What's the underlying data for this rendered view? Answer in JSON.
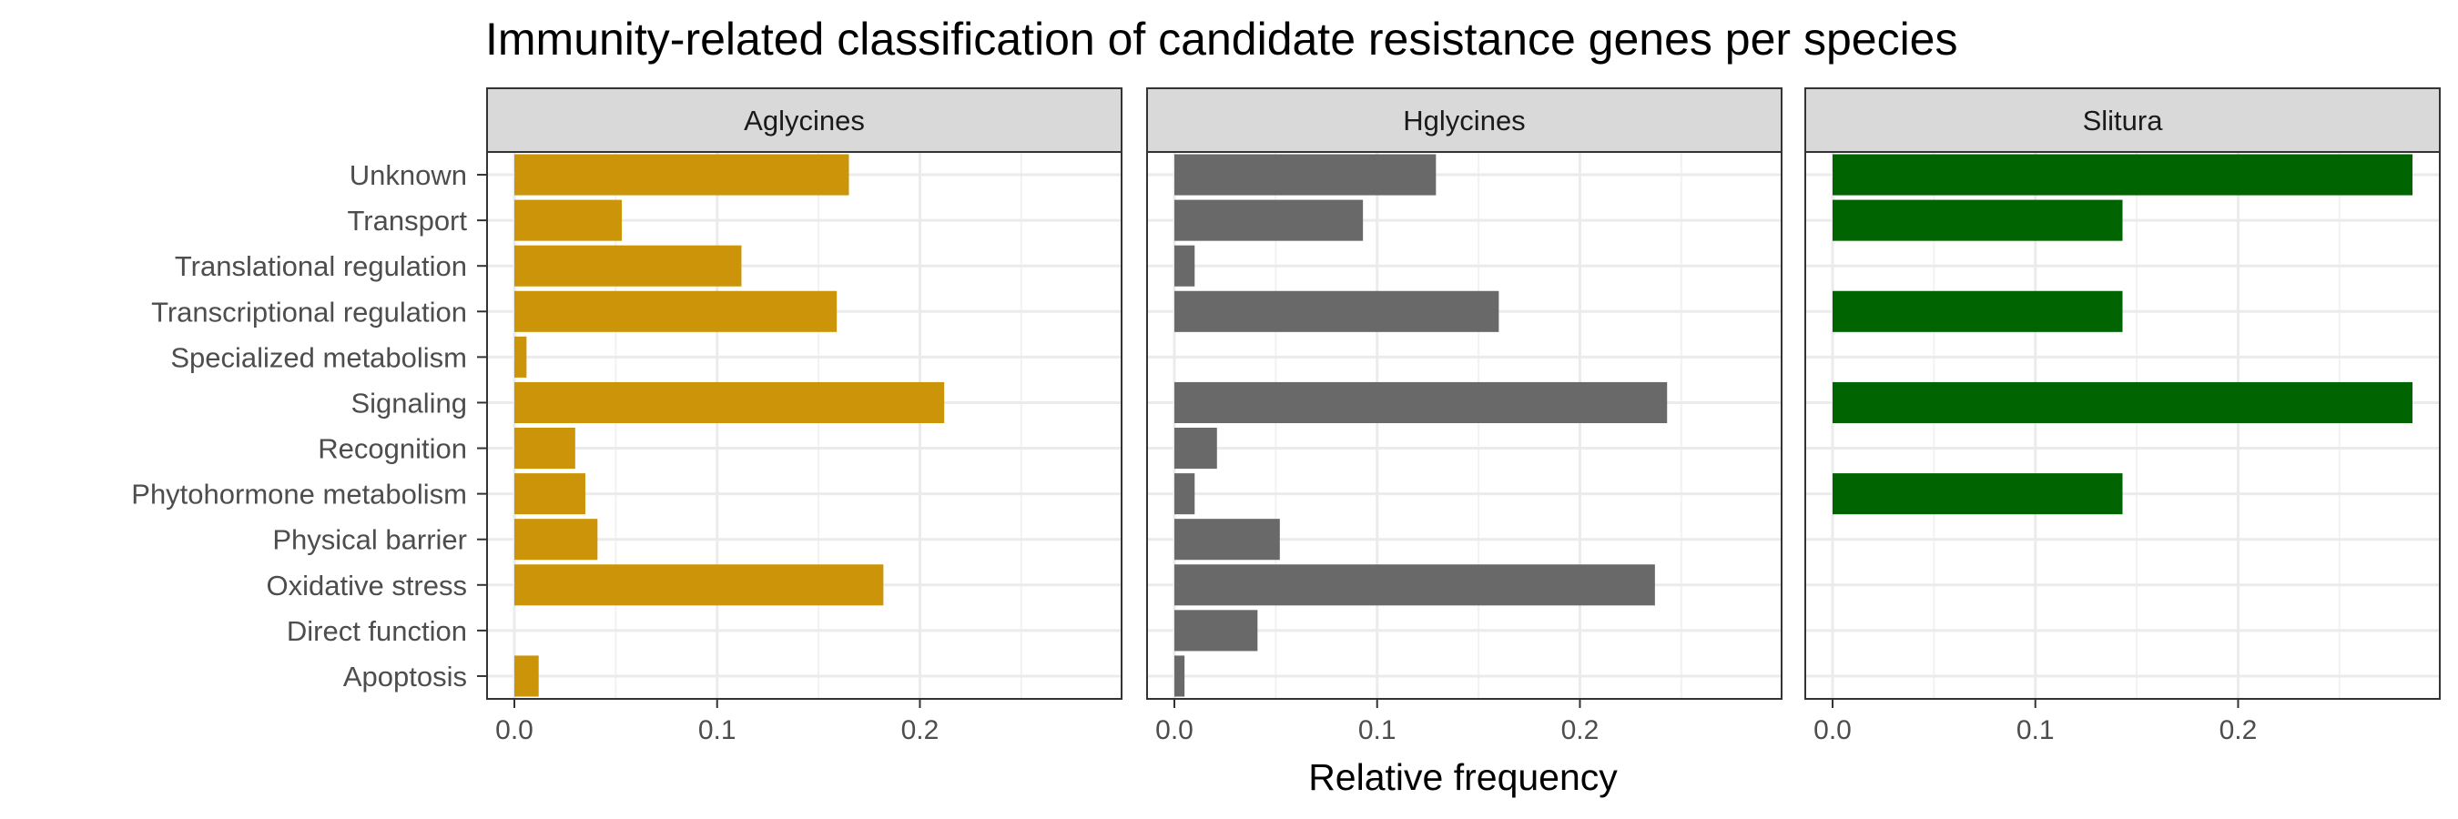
{
  "chart_data": {
    "type": "bar",
    "orientation": "horizontal",
    "title": "Immunity-related classification of candidate resistance genes per species",
    "xlabel": "Relative frequency",
    "ylabel": "",
    "xlim": [
      0,
      0.286
    ],
    "x_ticks": [
      0.0,
      0.1,
      0.2
    ],
    "x_tick_labels": [
      "0.0",
      "0.1",
      "0.2"
    ],
    "grid": true,
    "categories": [
      "Unknown",
      "Transport",
      "Translational regulation",
      "Transcriptional regulation",
      "Specialized metabolism",
      "Signaling",
      "Recognition",
      "Phytohormone metabolism",
      "Physical barrier",
      "Oxidative stress",
      "Direct function",
      "Apoptosis"
    ],
    "series": [
      {
        "name": "Aglycines",
        "color": "#CC9409",
        "values": [
          0.165,
          0.053,
          0.112,
          0.159,
          0.006,
          0.212,
          0.03,
          0.035,
          0.041,
          0.182,
          0.0,
          0.012
        ]
      },
      {
        "name": "Hglycines",
        "color": "#696969",
        "values": [
          0.129,
          0.093,
          0.01,
          0.16,
          0.0,
          0.243,
          0.021,
          0.01,
          0.052,
          0.237,
          0.041,
          0.005
        ]
      },
      {
        "name": "Slitura",
        "color": "#006400",
        "values": [
          0.286,
          0.143,
          0.0,
          0.143,
          0.0,
          0.286,
          0.0,
          0.143,
          0.0,
          0.0,
          0.0,
          0.0
        ]
      }
    ]
  }
}
